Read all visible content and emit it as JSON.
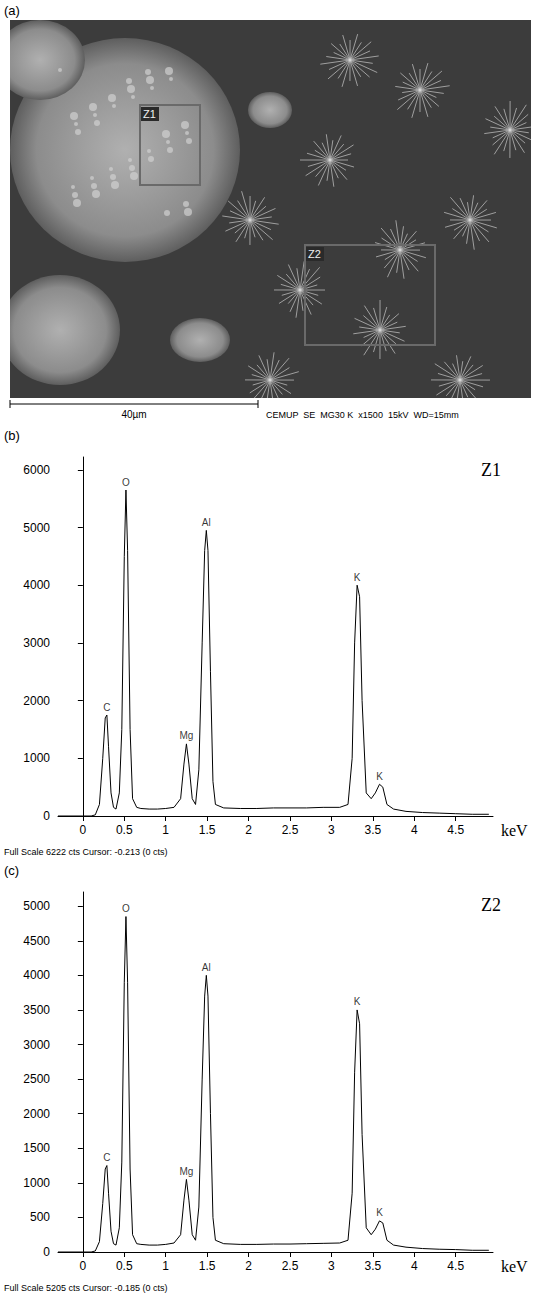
{
  "image_panel": {
    "panel_label": "(a)",
    "regions": [
      {
        "label": "Z1"
      },
      {
        "label": "Z2"
      }
    ],
    "scale_bar": "40µm",
    "info": "CEMUP  SE  MG30 K  x1500  15kV  WD=15mm"
  },
  "chart_data": [
    {
      "type": "line",
      "panel_label": "(b)",
      "title": "Z1",
      "x_label": "keV",
      "footer": "Full Scale 6222 cts Cursor: -0.213 (0 cts)",
      "color": "#000000",
      "grid": false,
      "xlim": [
        -0.3,
        4.95
      ],
      "xticks": [
        0,
        0.5,
        1,
        1.5,
        2,
        2.5,
        3,
        3.5,
        4,
        4.5
      ],
      "ylim": [
        0,
        6222
      ],
      "yticks": [
        0,
        1000,
        2000,
        3000,
        4000,
        5000,
        6000
      ],
      "x": [
        -0.3,
        0,
        0.1,
        0.15,
        0.2,
        0.24,
        0.27,
        0.29,
        0.31,
        0.34,
        0.37,
        0.4,
        0.44,
        0.47,
        0.5,
        0.52,
        0.54,
        0.57,
        0.6,
        0.65,
        0.7,
        0.8,
        0.9,
        1.0,
        1.1,
        1.18,
        1.22,
        1.25,
        1.28,
        1.32,
        1.36,
        1.4,
        1.44,
        1.47,
        1.49,
        1.51,
        1.54,
        1.57,
        1.6,
        1.7,
        1.9,
        2.1,
        2.3,
        2.5,
        2.7,
        2.9,
        3.1,
        3.2,
        3.25,
        3.28,
        3.31,
        3.34,
        3.37,
        3.42,
        3.48,
        3.53,
        3.58,
        3.62,
        3.67,
        3.75,
        3.9,
        4.1,
        4.3,
        4.5,
        4.7,
        4.9
      ],
      "values": [
        0,
        0,
        0,
        20,
        200,
        1000,
        1700,
        1750,
        1200,
        400,
        150,
        120,
        400,
        1500,
        4500,
        5650,
        4600,
        1500,
        300,
        150,
        130,
        120,
        120,
        130,
        150,
        300,
        900,
        1250,
        900,
        300,
        200,
        800,
        3000,
        4600,
        4950,
        4600,
        2500,
        600,
        200,
        140,
        130,
        130,
        140,
        140,
        140,
        150,
        150,
        200,
        1000,
        3000,
        4000,
        3800,
        2000,
        400,
        300,
        400,
        550,
        500,
        200,
        120,
        80,
        60,
        50,
        40,
        30,
        30
      ],
      "annotations": [
        {
          "text": "C",
          "x": 0.29,
          "y": 1750
        },
        {
          "text": "O",
          "x": 0.52,
          "y": 5650
        },
        {
          "text": "Mg",
          "x": 1.25,
          "y": 1250
        },
        {
          "text": "Al",
          "x": 1.49,
          "y": 4950
        },
        {
          "text": "K",
          "x": 3.31,
          "y": 4000
        },
        {
          "text": "K",
          "x": 3.58,
          "y": 550
        }
      ]
    },
    {
      "type": "line",
      "panel_label": "(c)",
      "title": "Z2",
      "x_label": "keV",
      "footer": "Full Scale 5205 cts Cursor: -0.185 (0 cts)",
      "color": "#000000",
      "grid": false,
      "xlim": [
        -0.3,
        4.95
      ],
      "xticks": [
        0,
        0.5,
        1,
        1.5,
        2,
        2.5,
        3,
        3.5,
        4,
        4.5
      ],
      "ylim": [
        0,
        5205
      ],
      "yticks": [
        0,
        500,
        1000,
        1500,
        2000,
        2500,
        3000,
        3500,
        4000,
        4500,
        5000
      ],
      "x": [
        -0.3,
        0,
        0.1,
        0.15,
        0.2,
        0.24,
        0.27,
        0.29,
        0.31,
        0.34,
        0.37,
        0.4,
        0.44,
        0.47,
        0.5,
        0.52,
        0.54,
        0.57,
        0.6,
        0.65,
        0.7,
        0.8,
        0.9,
        1.0,
        1.1,
        1.18,
        1.22,
        1.25,
        1.28,
        1.32,
        1.36,
        1.4,
        1.44,
        1.47,
        1.49,
        1.51,
        1.54,
        1.57,
        1.6,
        1.7,
        1.9,
        2.1,
        2.3,
        2.5,
        2.7,
        2.9,
        3.1,
        3.2,
        3.25,
        3.28,
        3.31,
        3.34,
        3.37,
        3.42,
        3.48,
        3.53,
        3.58,
        3.62,
        3.67,
        3.75,
        3.9,
        4.1,
        4.3,
        4.5,
        4.7,
        4.9
      ],
      "values": [
        0,
        0,
        0,
        15,
        150,
        700,
        1200,
        1250,
        850,
        300,
        120,
        100,
        350,
        1300,
        3900,
        4850,
        3900,
        1200,
        250,
        120,
        110,
        100,
        100,
        110,
        130,
        250,
        750,
        1050,
        750,
        250,
        170,
        650,
        2500,
        3700,
        4000,
        3700,
        2000,
        500,
        170,
        120,
        110,
        110,
        115,
        115,
        120,
        125,
        130,
        170,
        850,
        2600,
        3500,
        3300,
        1700,
        350,
        250,
        330,
        450,
        420,
        170,
        100,
        70,
        50,
        40,
        35,
        25,
        25
      ],
      "annotations": [
        {
          "text": "C",
          "x": 0.29,
          "y": 1250
        },
        {
          "text": "O",
          "x": 0.52,
          "y": 4850
        },
        {
          "text": "Mg",
          "x": 1.25,
          "y": 1050
        },
        {
          "text": "Al",
          "x": 1.49,
          "y": 4000
        },
        {
          "text": "K",
          "x": 3.31,
          "y": 3500
        },
        {
          "text": "K",
          "x": 3.58,
          "y": 450
        }
      ]
    }
  ]
}
